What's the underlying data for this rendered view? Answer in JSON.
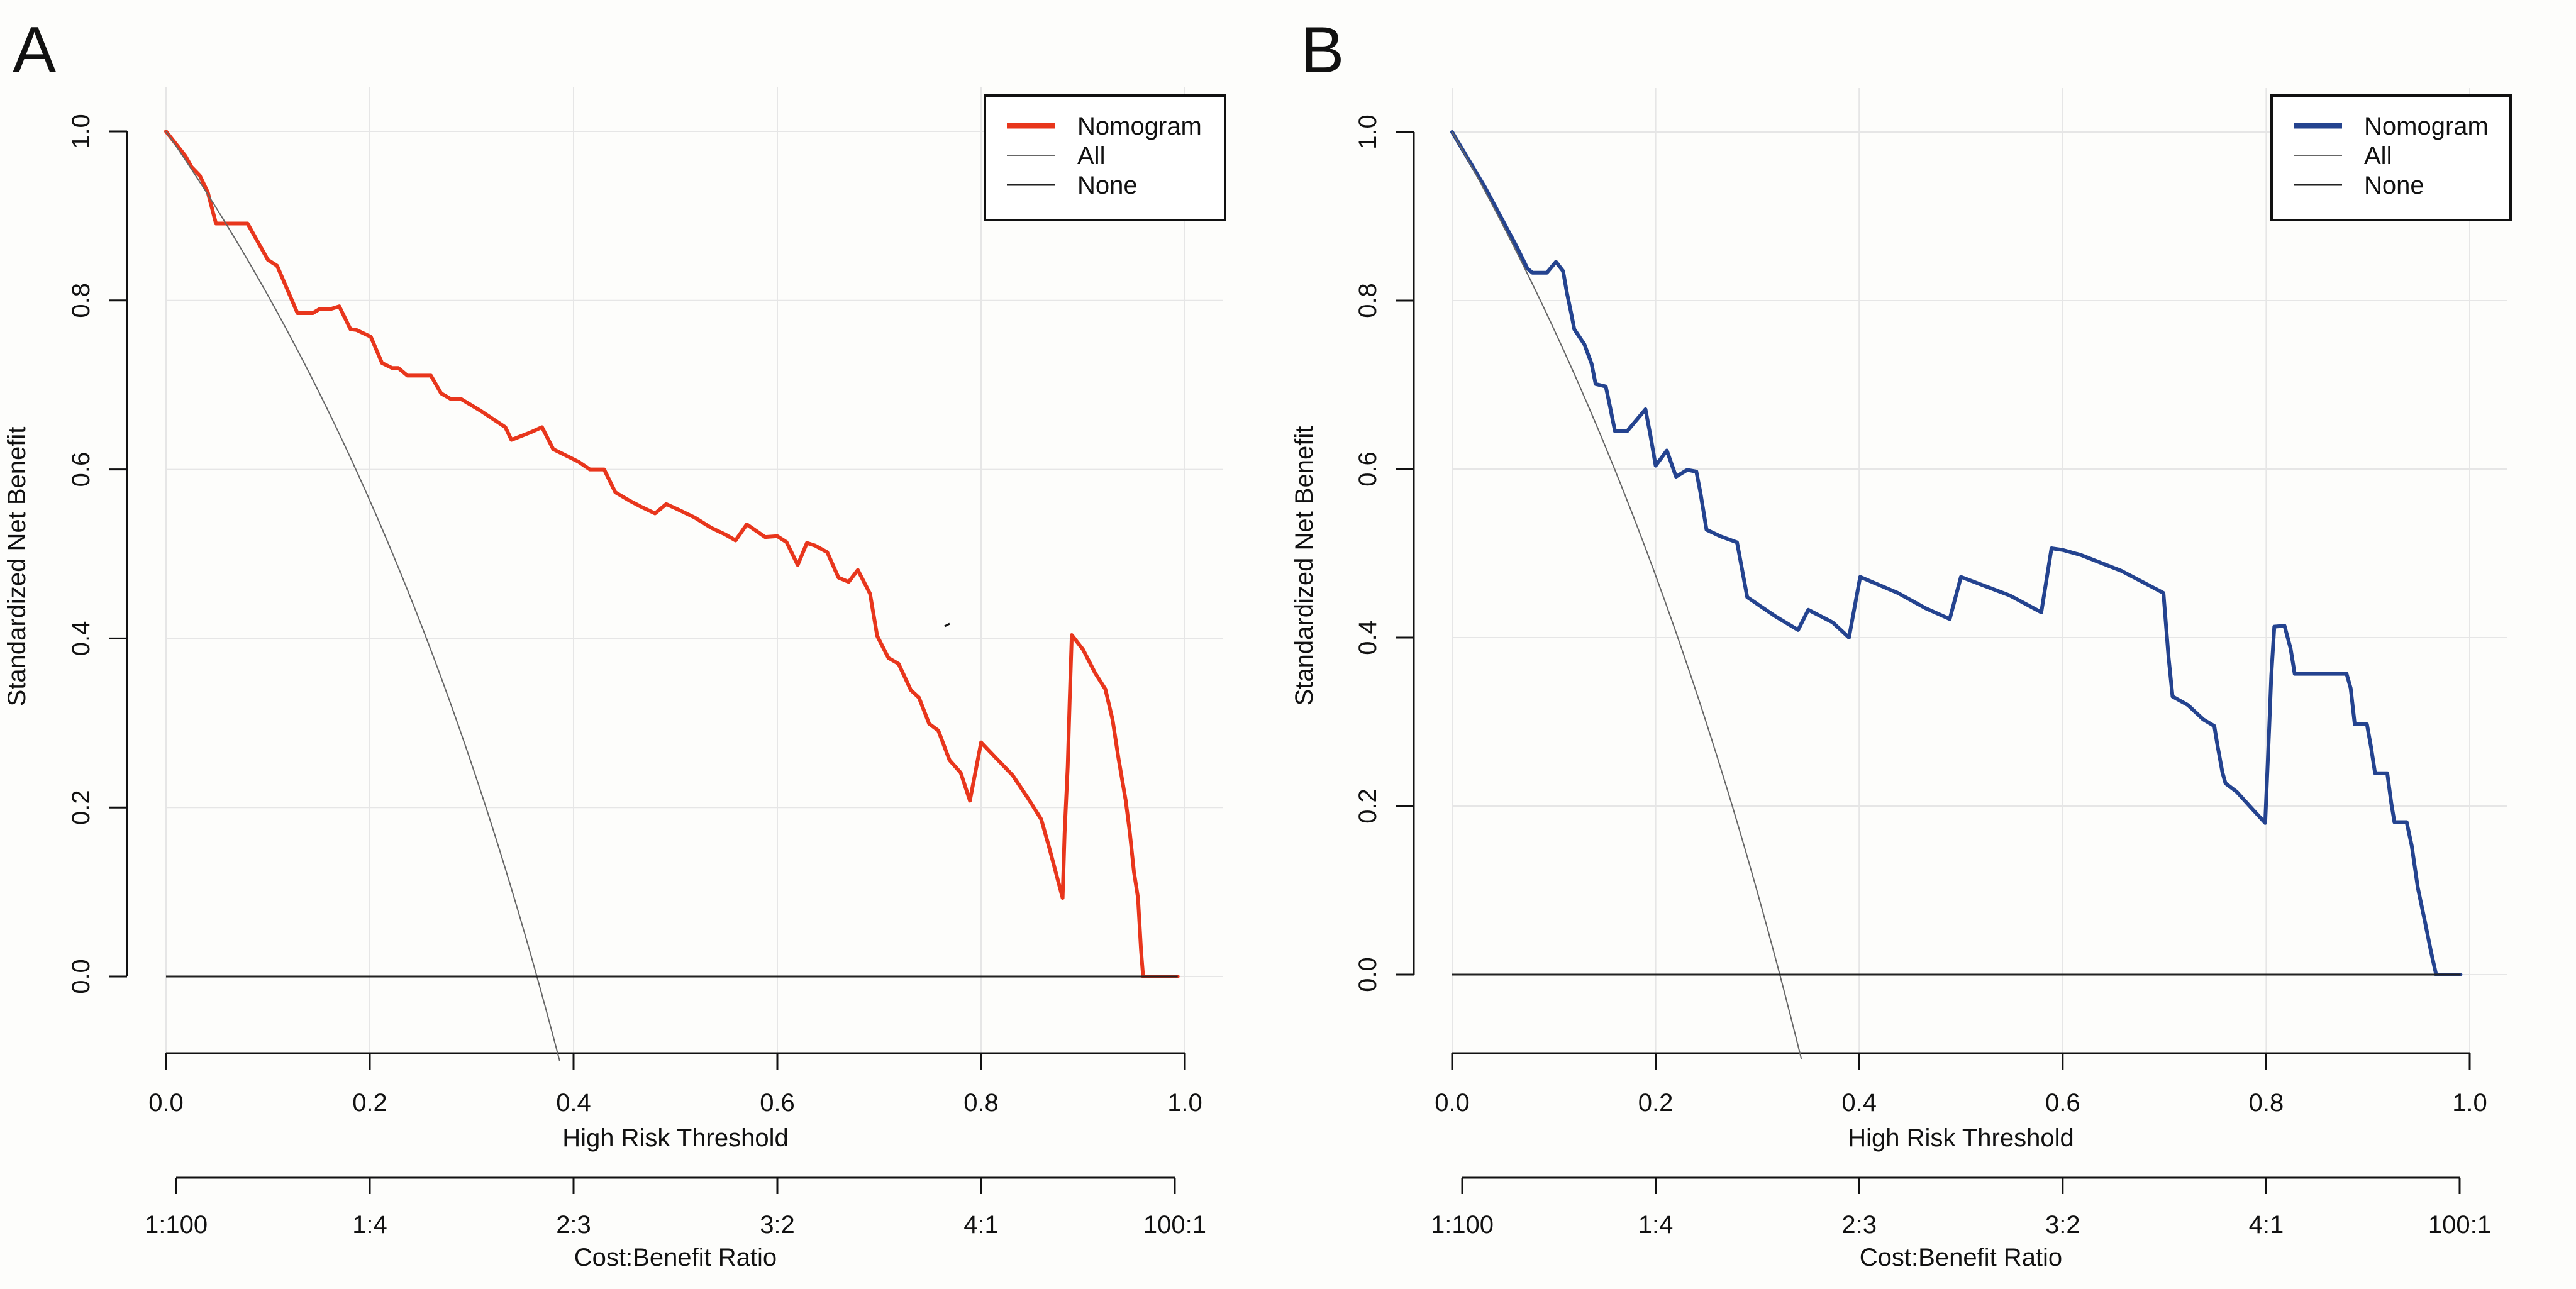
{
  "figure": {
    "panels": [
      {
        "letter": "A",
        "nomogram_color": "#e8361c"
      },
      {
        "letter": "B",
        "nomogram_color": "#24438f"
      }
    ]
  },
  "chart_data": [
    {
      "type": "line",
      "panel": "A",
      "title": "",
      "xlabel": "High Risk Threshold",
      "ylabel": "Standardized Net Benefit",
      "xlim": [
        0,
        1
      ],
      "ylim": [
        -0.1,
        1.0
      ],
      "x_ticks": [
        "0.0",
        "0.2",
        "0.4",
        "0.6",
        "0.8",
        "1.0"
      ],
      "y_ticks": [
        "0.0",
        "0.2",
        "0.4",
        "0.6",
        "0.8",
        "1.0"
      ],
      "secondary_axis": {
        "label": "Cost:Benefit Ratio",
        "ticks": [
          "1:100",
          "1:4",
          "2:3",
          "3:2",
          "4:1",
          "100:1"
        ],
        "tick_positions": [
          0.0099,
          0.2,
          0.4,
          0.6,
          0.8,
          0.9901
        ]
      },
      "grid": true,
      "legend": {
        "position": "top-right",
        "entries": [
          "Nomogram",
          "All",
          "None"
        ]
      },
      "series": [
        {
          "name": "Nomogram",
          "color": "#e8361c",
          "x": [
            0.0,
            0.019,
            0.025,
            0.033,
            0.041,
            0.049,
            0.08,
            0.1,
            0.109,
            0.129,
            0.144,
            0.151,
            0.162,
            0.17,
            0.181,
            0.187,
            0.201,
            0.212,
            0.222,
            0.228,
            0.237,
            0.26,
            0.27,
            0.28,
            0.29,
            0.308,
            0.333,
            0.339,
            0.358,
            0.369,
            0.38,
            0.405,
            0.416,
            0.43,
            0.441,
            0.455,
            0.466,
            0.48,
            0.491,
            0.502,
            0.519,
            0.535,
            0.549,
            0.559,
            0.57,
            0.588,
            0.6,
            0.609,
            0.62,
            0.629,
            0.637,
            0.649,
            0.66,
            0.67,
            0.679,
            0.691,
            0.698,
            0.709,
            0.719,
            0.731,
            0.739,
            0.749,
            0.758,
            0.769,
            0.78,
            0.789,
            0.8,
            0.815,
            0.831,
            0.846,
            0.859,
            0.867,
            0.88,
            0.882,
            0.885,
            0.887,
            0.889,
            0.9,
            0.912,
            0.922,
            0.929,
            0.935,
            0.942,
            0.946,
            0.95,
            0.954,
            0.957,
            0.959,
            0.993
          ],
          "y": [
            1.0,
            0.971,
            0.958,
            0.948,
            0.928,
            0.891,
            0.891,
            0.848,
            0.841,
            0.785,
            0.785,
            0.79,
            0.79,
            0.793,
            0.766,
            0.765,
            0.757,
            0.726,
            0.72,
            0.72,
            0.711,
            0.711,
            0.69,
            0.683,
            0.683,
            0.67,
            0.65,
            0.635,
            0.644,
            0.65,
            0.624,
            0.609,
            0.6,
            0.6,
            0.573,
            0.563,
            0.556,
            0.548,
            0.559,
            0.553,
            0.543,
            0.531,
            0.523,
            0.516,
            0.535,
            0.52,
            0.521,
            0.514,
            0.487,
            0.513,
            0.51,
            0.502,
            0.472,
            0.467,
            0.481,
            0.453,
            0.403,
            0.377,
            0.37,
            0.339,
            0.33,
            0.299,
            0.291,
            0.256,
            0.241,
            0.208,
            0.277,
            0.258,
            0.238,
            0.211,
            0.186,
            0.152,
            0.093,
            0.17,
            0.248,
            0.328,
            0.404,
            0.387,
            0.359,
            0.34,
            0.304,
            0.257,
            0.208,
            0.17,
            0.124,
            0.093,
            0.031,
            0.0,
            0.0
          ]
        },
        {
          "name": "All",
          "color": "#666666",
          "prevalence": 0.364
        },
        {
          "name": "None",
          "color": "#222222",
          "x": [
            0,
            0.993
          ],
          "y": [
            0,
            0
          ]
        }
      ]
    },
    {
      "type": "line",
      "panel": "B",
      "title": "",
      "xlabel": "High Risk Threshold",
      "ylabel": "Standardized Net Benefit",
      "xlim": [
        0,
        1
      ],
      "ylim": [
        -0.1,
        1.0
      ],
      "x_ticks": [
        "0.0",
        "0.2",
        "0.4",
        "0.6",
        "0.8",
        "1.0"
      ],
      "y_ticks": [
        "0.0",
        "0.2",
        "0.4",
        "0.6",
        "0.8",
        "1.0"
      ],
      "secondary_axis": {
        "label": "Cost:Benefit Ratio",
        "ticks": [
          "1:100",
          "1:4",
          "2:3",
          "3:2",
          "4:1",
          "100:1"
        ],
        "tick_positions": [
          0.0099,
          0.2,
          0.4,
          0.6,
          0.8,
          0.9901
        ]
      },
      "grid": true,
      "legend": {
        "position": "top-right",
        "entries": [
          "Nomogram",
          "All",
          "None"
        ]
      },
      "series": [
        {
          "name": "Nomogram",
          "color": "#24438f",
          "x": [
            0.0,
            0.032,
            0.063,
            0.074,
            0.079,
            0.093,
            0.102,
            0.109,
            0.113,
            0.117,
            0.12,
            0.13,
            0.137,
            0.141,
            0.151,
            0.155,
            0.16,
            0.172,
            0.19,
            0.195,
            0.2,
            0.211,
            0.22,
            0.231,
            0.24,
            0.244,
            0.25,
            0.264,
            0.28,
            0.29,
            0.318,
            0.34,
            0.35,
            0.374,
            0.39,
            0.401,
            0.438,
            0.465,
            0.489,
            0.5,
            0.548,
            0.579,
            0.589,
            0.6,
            0.618,
            0.658,
            0.688,
            0.699,
            0.704,
            0.708,
            0.723,
            0.738,
            0.749,
            0.752,
            0.757,
            0.76,
            0.771,
            0.786,
            0.799,
            0.801,
            0.803,
            0.805,
            0.808,
            0.818,
            0.824,
            0.828,
            0.879,
            0.883,
            0.887,
            0.899,
            0.903,
            0.907,
            0.919,
            0.923,
            0.926,
            0.938,
            0.943,
            0.949,
            0.956,
            0.962,
            0.967,
            0.991
          ],
          "y": [
            1.0,
            0.935,
            0.865,
            0.838,
            0.833,
            0.833,
            0.846,
            0.835,
            0.808,
            0.785,
            0.766,
            0.748,
            0.725,
            0.701,
            0.698,
            0.675,
            0.645,
            0.645,
            0.671,
            0.639,
            0.604,
            0.622,
            0.591,
            0.599,
            0.597,
            0.572,
            0.528,
            0.52,
            0.513,
            0.448,
            0.425,
            0.409,
            0.433,
            0.418,
            0.4,
            0.472,
            0.453,
            0.435,
            0.422,
            0.472,
            0.45,
            0.43,
            0.506,
            0.504,
            0.498,
            0.479,
            0.46,
            0.453,
            0.377,
            0.33,
            0.32,
            0.303,
            0.295,
            0.273,
            0.24,
            0.227,
            0.217,
            0.197,
            0.18,
            0.237,
            0.295,
            0.355,
            0.413,
            0.414,
            0.387,
            0.357,
            0.357,
            0.34,
            0.297,
            0.297,
            0.27,
            0.239,
            0.239,
            0.203,
            0.181,
            0.181,
            0.153,
            0.103,
            0.063,
            0.027,
            0.0,
            0.0
          ]
        },
        {
          "name": "All",
          "color": "#666666",
          "prevalence": 0.322
        },
        {
          "name": "None",
          "color": "#222222",
          "x": [
            0,
            0.991
          ],
          "y": [
            0,
            0
          ]
        }
      ]
    }
  ]
}
